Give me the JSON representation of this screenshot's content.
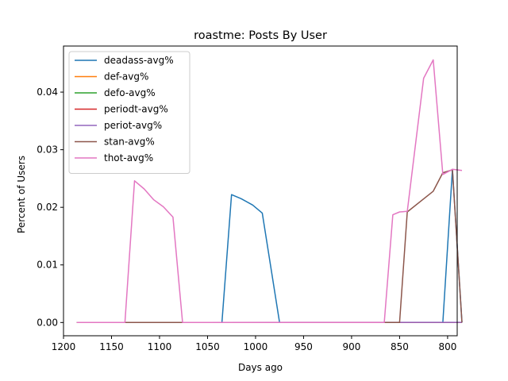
{
  "chart_data": {
    "type": "line",
    "title": "roastme: Posts By User",
    "xlabel": "Days ago",
    "ylabel": "Percent of Users",
    "xlim": [
      1200,
      790
    ],
    "ylim": [
      -0.0023,
      0.048
    ],
    "x_inverted": true,
    "xticks": [
      1200,
      1150,
      1100,
      1050,
      1000,
      950,
      900,
      850,
      800
    ],
    "yticks": [
      0.0,
      0.01,
      0.02,
      0.03,
      0.04
    ],
    "xtick_labels": [
      "1200",
      "1150",
      "1100",
      "1050",
      "1000",
      "950",
      "900",
      "850",
      "800"
    ],
    "ytick_labels": [
      "0.00",
      "0.01",
      "0.02",
      "0.03",
      "0.04"
    ],
    "grid": false,
    "legend_position": "top-left",
    "series": [
      {
        "name": "deadass-avg%",
        "color": "#1f77b4",
        "x": [
          1186,
          1035,
          1025,
          1015,
          1003,
          993,
          975,
          805,
          795,
          785
        ],
        "y": [
          0,
          0,
          0.0222,
          0.0215,
          0.0204,
          0.019,
          0,
          0,
          0.0266,
          0
        ]
      },
      {
        "name": "def-avg%",
        "color": "#ff7f0e",
        "x": [
          1186,
          785
        ],
        "y": [
          0,
          0
        ]
      },
      {
        "name": "defo-avg%",
        "color": "#2ca02c",
        "x": [
          1186,
          785
        ],
        "y": [
          0,
          0
        ]
      },
      {
        "name": "periodt-avg%",
        "color": "#d62728",
        "x": [
          1186,
          785
        ],
        "y": [
          0,
          0
        ]
      },
      {
        "name": "periot-avg%",
        "color": "#9467bd",
        "x": [
          1186,
          785
        ],
        "y": [
          0,
          3e-05
        ]
      },
      {
        "name": "stan-avg%",
        "color": "#8c564b",
        "x": [
          1186,
          850,
          842,
          815,
          805,
          795,
          785
        ],
        "y": [
          0,
          0,
          0.0192,
          0.0228,
          0.026,
          0.0265,
          0
        ]
      },
      {
        "name": "thot-avg%",
        "color": "#e377c2",
        "x": [
          1186,
          1136,
          1126,
          1116,
          1106,
          1096,
          1086,
          1076,
          866,
          857,
          850,
          842,
          825,
          815,
          805,
          795,
          785
        ],
        "y": [
          0,
          0,
          0.0246,
          0.0232,
          0.0213,
          0.0201,
          0.0183,
          0,
          0,
          0.0187,
          0.0192,
          0.0193,
          0.0424,
          0.0456,
          0.0257,
          0.0266,
          0.0264
        ]
      }
    ]
  }
}
